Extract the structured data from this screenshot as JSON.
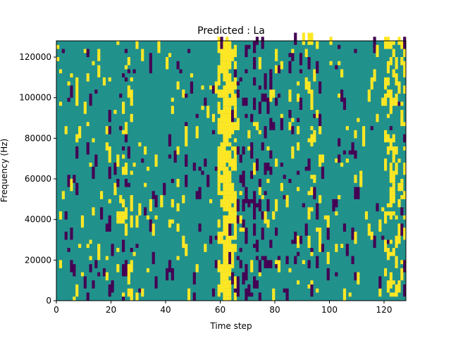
{
  "chart_data": {
    "type": "heatmap",
    "title": "Predicted : La",
    "xlabel": "Time step",
    "ylabel": "Frequency (Hz)",
    "xlim": [
      0,
      128
    ],
    "ylim": [
      0,
      128000
    ],
    "xticks": [
      0,
      20,
      40,
      60,
      80,
      100,
      120
    ],
    "yticks": [
      0,
      20000,
      40000,
      60000,
      80000,
      100000,
      120000
    ],
    "columns": 128,
    "rows": 128,
    "cell_value_levels": {
      "low": -1,
      "neutral": 0,
      "high": 1
    },
    "colors": {
      "low": "#440154",
      "neutral": "#21918c",
      "high": "#fde725"
    },
    "dominant_high_band_time_steps": [
      59,
      65
    ],
    "secondary_high_band_time_steps": [
      120,
      127
    ],
    "grid": false,
    "legend": "none"
  }
}
